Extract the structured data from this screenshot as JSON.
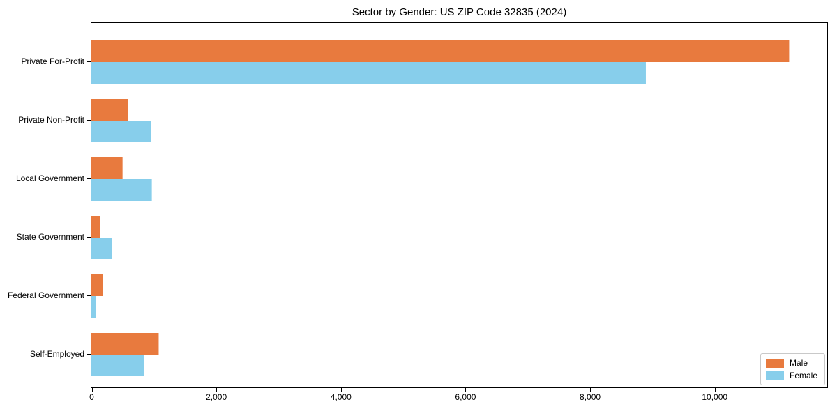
{
  "chart_data": {
    "type": "bar",
    "orientation": "horizontal",
    "title": "Sector by Gender: US ZIP Code 32835 (2024)",
    "categories": [
      "Private For-Profit",
      "Private Non-Profit",
      "Local Government",
      "State Government",
      "Federal Government",
      "Self-Employed"
    ],
    "series": [
      {
        "name": "Male",
        "color": "#e87a3e",
        "values": [
          11200,
          590,
          500,
          135,
          180,
          1080
        ]
      },
      {
        "name": "Female",
        "color": "#87ceeb",
        "values": [
          8900,
          960,
          970,
          335,
          70,
          840
        ]
      }
    ],
    "xlabel": "",
    "ylabel": "",
    "xlim": [
      0,
      11800
    ],
    "xticks": [
      0,
      2000,
      4000,
      6000,
      8000,
      10000
    ],
    "xtick_labels": [
      "0",
      "2,000",
      "4,000",
      "6,000",
      "8,000",
      "10,000"
    ],
    "grid": false,
    "legend_position": "lower right"
  },
  "colors": {
    "background": "#ffffff",
    "spine": "#000000",
    "text": "#000000",
    "legend_border": "#c9c9c9",
    "male": "#e87a3e",
    "female": "#87ceeb"
  }
}
